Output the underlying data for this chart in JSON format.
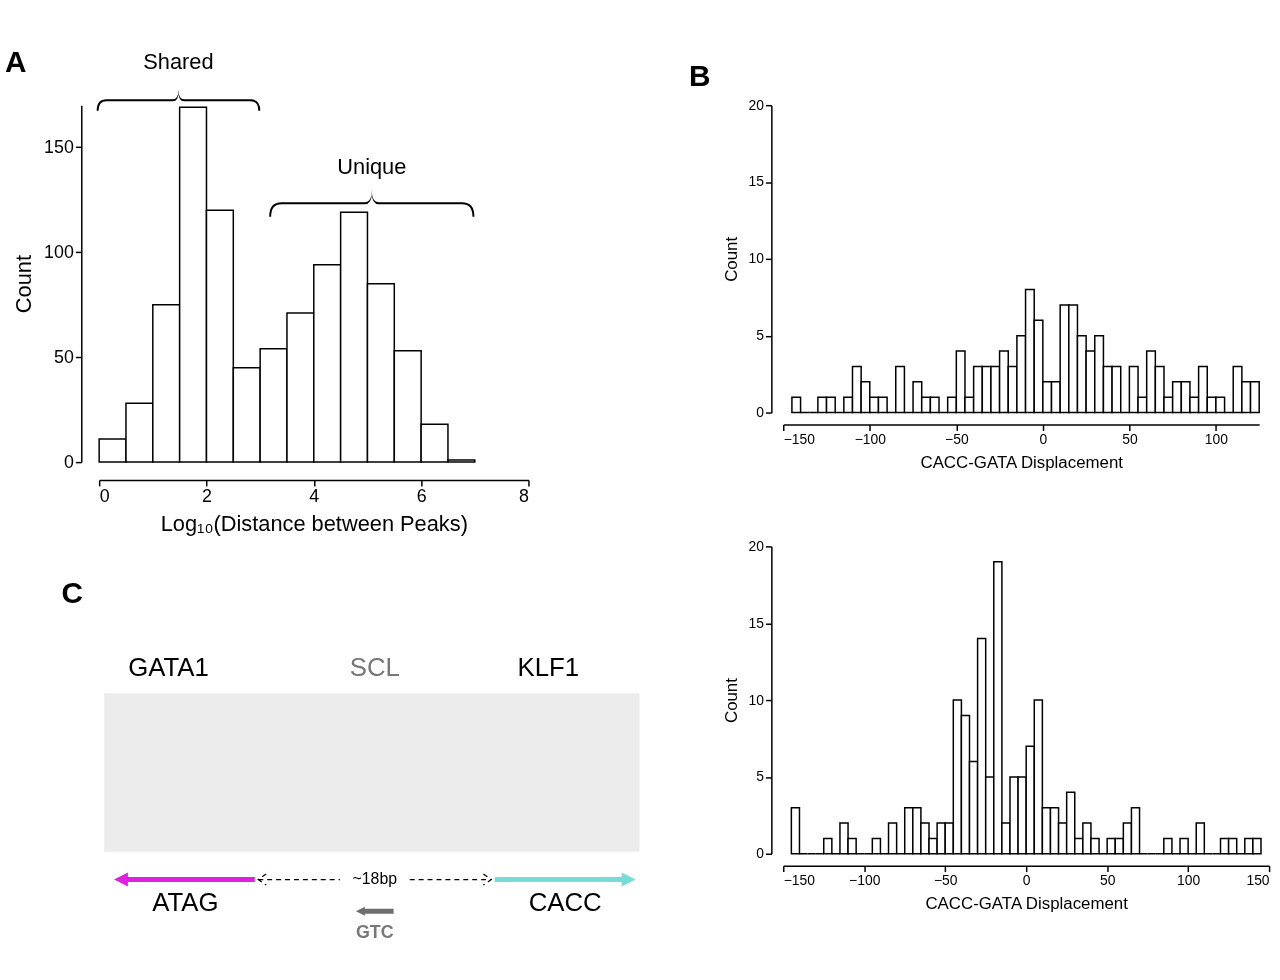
{
  "chart_data": [
    {
      "type": "histogram",
      "xlabel": "Log₁₀(Distance between Peaks)",
      "ylabel": "Count",
      "annotations": [
        "A",
        "Shared",
        "Unique"
      ],
      "bins": [
        0,
        0.5,
        1,
        1.5,
        2,
        2.5,
        3,
        3.5,
        4,
        4.5,
        5,
        5.5,
        6,
        6.5,
        7
      ],
      "values": [
        11,
        28,
        75,
        169,
        120,
        45,
        54,
        71,
        94,
        119,
        85,
        53,
        18,
        1
      ],
      "xlim": [
        0,
        8
      ],
      "xticks": [
        0,
        2,
        4,
        6,
        8
      ],
      "ylim": [
        0,
        170
      ],
      "yticks": [
        0,
        50,
        100,
        150
      ]
    },
    {
      "type": "histogram",
      "xlabel": "CACC-GATA Displacement",
      "ylabel": "Count",
      "annotations": [
        "B"
      ],
      "bins": [
        -145,
        -140,
        -135,
        -130,
        -125,
        -120,
        -115,
        -110,
        -105,
        -100,
        -95,
        -90,
        -85,
        -80,
        -75,
        -70,
        -65,
        -60,
        -55,
        -50,
        -45,
        -40,
        -35,
        -30,
        -25,
        -20,
        -15,
        -10,
        -5,
        0,
        5,
        10,
        15,
        20,
        25,
        30,
        35,
        40,
        45,
        50,
        55,
        60,
        65,
        70,
        75,
        80,
        85,
        90,
        95,
        100,
        105,
        110,
        115,
        120,
        125
      ],
      "values": [
        1,
        0,
        0,
        1,
        1,
        0,
        1,
        3,
        2,
        1,
        1,
        0,
        3,
        0,
        2,
        1,
        1,
        0,
        1,
        4,
        1,
        3,
        3,
        3,
        4,
        3,
        5,
        8,
        6,
        2,
        2,
        7,
        7,
        5,
        4,
        5,
        3,
        3,
        0,
        3,
        1,
        4,
        3,
        1,
        2,
        2,
        1,
        3,
        1,
        1,
        0,
        3,
        2,
        2
      ],
      "xlim": [
        -150,
        125
      ],
      "xticks": [
        -150,
        -100,
        -50,
        0,
        50,
        100
      ],
      "ylim": [
        0,
        20
      ],
      "yticks": [
        0,
        5,
        10,
        15,
        20
      ]
    },
    {
      "type": "other",
      "annotations": [
        "C",
        "GATA1",
        "SCL",
        "KLF1",
        "ATAG",
        "~18bp",
        "CACC",
        "GTC"
      ]
    },
    {
      "type": "histogram",
      "xlabel": "CACC-GATA Displacement",
      "ylabel": "Count",
      "bins": [
        -145,
        -140,
        -135,
        -130,
        -125,
        -120,
        -115,
        -110,
        -105,
        -100,
        -95,
        -90,
        -85,
        -80,
        -75,
        -70,
        -65,
        -60,
        -55,
        -50,
        -45,
        -40,
        -35,
        -30,
        -25,
        -20,
        -15,
        -10,
        -5,
        0,
        5,
        10,
        15,
        20,
        25,
        30,
        35,
        40,
        45,
        50,
        55,
        60,
        65,
        70,
        75,
        80,
        85,
        90,
        95,
        100,
        105,
        110,
        115,
        120,
        125,
        130,
        135,
        140,
        145
      ],
      "values": [
        3,
        0,
        0,
        0,
        1,
        0,
        2,
        1,
        0,
        0,
        1,
        0,
        2,
        0,
        3,
        3,
        2,
        1,
        2,
        2,
        10,
        9,
        6,
        14,
        5,
        19,
        2,
        5,
        5,
        7,
        10,
        3,
        3,
        2,
        4,
        1,
        2,
        1,
        0,
        1,
        1,
        2,
        3,
        0,
        0,
        0,
        1,
        0,
        1,
        0,
        2,
        0,
        0,
        1,
        1,
        0,
        1,
        1
      ],
      "xlim": [
        -150,
        150
      ],
      "xticks": [
        -150,
        -100,
        -50,
        0,
        50,
        100,
        150
      ],
      "ylim": [
        0,
        20
      ],
      "yticks": [
        0,
        5,
        10,
        15,
        20
      ]
    }
  ]
}
